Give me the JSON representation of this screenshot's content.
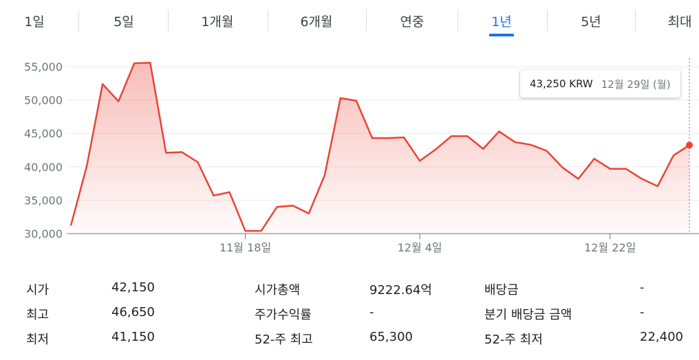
{
  "tabs": [
    {
      "label": "1일",
      "active": false
    },
    {
      "label": "5일",
      "active": false
    },
    {
      "label": "1개월",
      "active": false
    },
    {
      "label": "6개월",
      "active": false
    },
    {
      "label": "연중",
      "active": false
    },
    {
      "label": "1년",
      "active": true
    },
    {
      "label": "5년",
      "active": false
    },
    {
      "label": "최대",
      "active": false
    }
  ],
  "tooltip": {
    "price": "43,250 KRW",
    "date": "12월 29일 (월)"
  },
  "chart_data": {
    "type": "area",
    "title": "",
    "xlabel": "",
    "ylabel": "",
    "ylim": [
      30000,
      56000
    ],
    "y_ticks": [
      "55,000",
      "50,000",
      "45,000",
      "40,000",
      "35,000",
      "30,000"
    ],
    "y_tick_values": [
      55000,
      50000,
      45000,
      40000,
      35000,
      30000
    ],
    "x_ticks": [
      {
        "label": "11월 18일",
        "index": 11
      },
      {
        "label": "12월 4일",
        "index": 22
      },
      {
        "label": "12월 22일",
        "index": 34
      }
    ],
    "line_color": "#ea4335",
    "grid": true,
    "series": [
      {
        "values": [
          31200,
          40100,
          52400,
          49800,
          55500,
          55600,
          42100,
          42200,
          40700,
          35700,
          36200,
          30400,
          30400,
          34000,
          34200,
          33000,
          38700,
          50300,
          49900,
          44300,
          44300,
          44400,
          40900,
          42600,
          44600,
          44600,
          42700,
          45300,
          43700,
          43300,
          42400,
          39900,
          38200,
          41200,
          39700,
          39700,
          38200,
          37100,
          41700,
          43250
        ]
      }
    ]
  },
  "stats": {
    "col1": [
      {
        "label": "시가",
        "value": "42,150"
      },
      {
        "label": "최고",
        "value": "46,650"
      },
      {
        "label": "최저",
        "value": "41,150"
      }
    ],
    "col2": [
      {
        "label": "시가총액",
        "value": "9222.64억"
      },
      {
        "label": "주가수익률",
        "value": "-"
      },
      {
        "label": "52-주 최고",
        "value": "65,300"
      }
    ],
    "col3": [
      {
        "label": "배당금",
        "value": "-"
      },
      {
        "label": "분기 배당금 금액",
        "value": "-"
      },
      {
        "label": "52-주 최저",
        "value": "22,400"
      }
    ]
  }
}
